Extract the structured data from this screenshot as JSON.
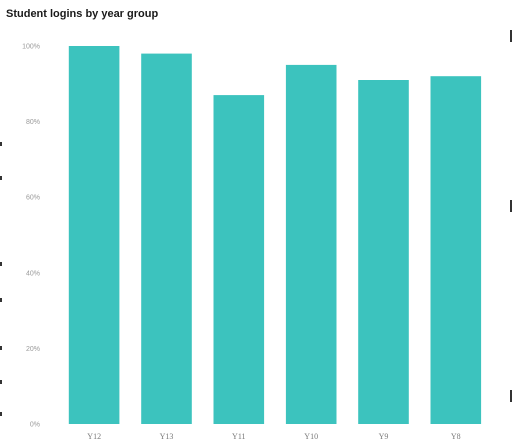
{
  "chart_data": {
    "type": "bar",
    "title": "Student logins by year group",
    "xlabel": "",
    "ylabel": "",
    "categories": [
      "Y12",
      "Y13",
      "Y11",
      "Y10",
      "Y9",
      "Y8"
    ],
    "values": [
      100,
      98,
      87,
      95,
      91,
      92
    ],
    "ylim": [
      0,
      100
    ],
    "yticks": [
      0,
      20,
      40,
      60,
      80,
      100
    ],
    "ytick_labels": [
      "0%",
      "20%",
      "40%",
      "60%",
      "80%",
      "100%"
    ],
    "grid": false,
    "legend": "none",
    "bar_color": "#3cc3be"
  }
}
